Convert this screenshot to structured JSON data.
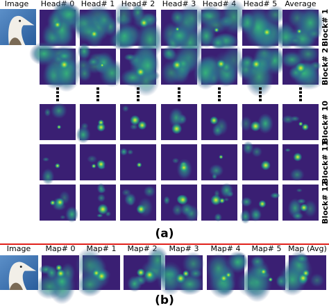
{
  "panel_a": {
    "image_label": "Image",
    "columns": [
      "Head# 0",
      "Head# 1",
      "Head# 2",
      "Head# 3",
      "Head# 4",
      "Head# 5",
      "Average"
    ],
    "rows": [
      "Block# 1",
      "Block# 2",
      "Block# 10",
      "Block# 11",
      "Block# 12"
    ],
    "caption": "(a)"
  },
  "panel_b": {
    "image_label": "Image",
    "columns": [
      "Map# 0",
      "Map# 1",
      "Map# 2",
      "Map# 3",
      "Map# 4",
      "Map# 5",
      "Map (Avg)"
    ],
    "caption": "(b)"
  }
}
